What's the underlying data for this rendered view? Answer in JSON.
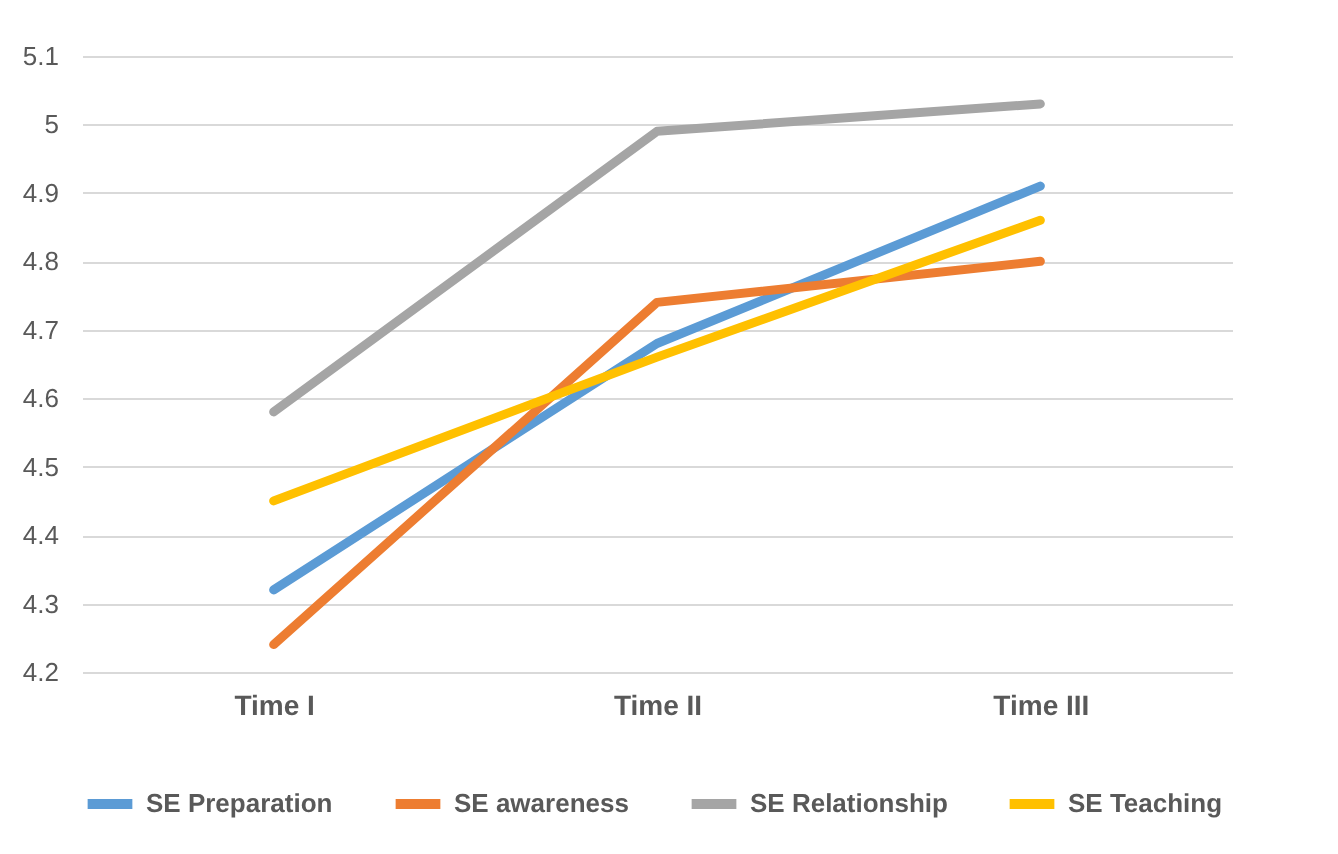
{
  "chart_data": {
    "type": "line",
    "categories": [
      "Time I",
      "Time II",
      "Time III"
    ],
    "series": [
      {
        "name": "SE Preparation",
        "color": "#5b9bd5",
        "values": [
          4.32,
          4.68,
          4.91
        ]
      },
      {
        "name": "SE awareness",
        "color": "#ed7d31",
        "values": [
          4.24,
          4.74,
          4.8
        ]
      },
      {
        "name": "SE Relationship",
        "color": "#a5a5a5",
        "values": [
          4.58,
          4.99,
          5.03
        ]
      },
      {
        "name": "SE Teaching",
        "color": "#ffc000",
        "values": [
          4.45,
          4.66,
          4.86
        ]
      }
    ],
    "ylim": [
      4.2,
      5.1
    ],
    "yticks": [
      4.2,
      4.3,
      4.4,
      4.5,
      4.6,
      4.7,
      4.8,
      4.9,
      5,
      5.1
    ],
    "grid": "y",
    "legend": "bottom"
  }
}
